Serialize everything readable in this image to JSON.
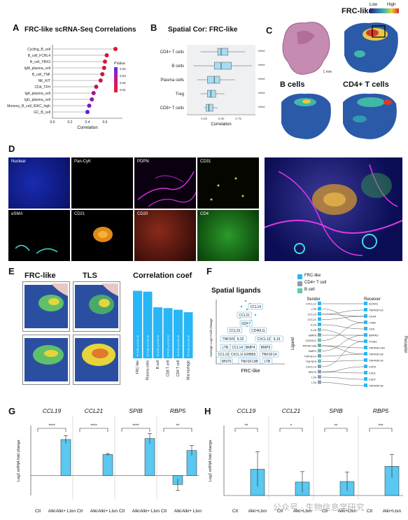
{
  "panel_labels": {
    "a": "A",
    "b": "B",
    "c": "C",
    "d": "D",
    "e": "E",
    "f": "F",
    "g": "G",
    "h": "H"
  },
  "panel_a": {
    "title": "FRC-like scRNA-Seq Correlations",
    "xlabel": "Correlation",
    "legend_title": "PValue",
    "legend_ticks": [
      "0.04",
      "0.03",
      "0.02",
      "0.01"
    ],
    "chart_data": {
      "type": "scatter",
      "categories": [
        "Cycling_B_cell",
        "B_cell_FCRL4",
        "B_cell_YBX3",
        "IgM_plasma_cell",
        "B_cell_TNF",
        "NK_KIT",
        "CD4_TFH",
        "IgA_plasma_cell",
        "IgG_plasma_cell",
        "Memory_B_cell_IGKC_high",
        "GC_B_cell"
      ],
      "values": [
        0.72,
        0.62,
        0.6,
        0.59,
        0.57,
        0.55,
        0.5,
        0.47,
        0.45,
        0.42,
        0.4
      ],
      "pvalues": [
        0.002,
        0.004,
        0.005,
        0.006,
        0.007,
        0.009,
        0.012,
        0.02,
        0.025,
        0.032,
        0.04
      ],
      "xticks": [
        "0.0",
        "0.2",
        "0.4",
        "0.6"
      ],
      "xlim": [
        0,
        0.8
      ]
    }
  },
  "panel_b": {
    "title": "Spatial Cor: FRC-like",
    "xlabel": "Correlation",
    "sig": "****",
    "chart_data": {
      "type": "box",
      "categories": [
        "CD4+ T cells",
        "B cells",
        "Plasma cells",
        "Treg",
        "CD8+ T cells"
      ],
      "q1": [
        0.45,
        0.4,
        0.3,
        0.3,
        0.28
      ],
      "median": [
        0.5,
        0.5,
        0.4,
        0.35,
        0.32
      ],
      "q3": [
        0.6,
        0.65,
        0.48,
        0.42,
        0.38
      ],
      "whisker_low": [
        0.2,
        0.1,
        0.15,
        0.2,
        0.25
      ],
      "whisker_high": [
        0.85,
        0.95,
        0.7,
        0.55,
        0.45
      ],
      "xticks": [
        "0.25",
        "0.50",
        "0.75"
      ],
      "xlim": [
        0,
        1
      ]
    }
  },
  "panel_c": {
    "legend_title": "FRC-like",
    "legend_low": "Low",
    "legend_high": "High",
    "scale_text": "1 mm",
    "titles": [
      "B cells",
      "CD4+ T cells"
    ]
  },
  "panel_d": {
    "labels": [
      "Nuclear",
      "Pan-CyK",
      "PDPN",
      "CD31",
      "αSMA",
      "CD21",
      "CD20",
      "CD4"
    ]
  },
  "panel_e": {
    "titles": [
      "FRC-like",
      "TLS"
    ],
    "chart_title": "Correlation coef",
    "chart_data": {
      "type": "bar",
      "categories": [
        "FRC-like",
        "Plasma cells",
        "B cell",
        "CD8 T cell",
        "CD4 T cell",
        "Macrophage"
      ],
      "values": [
        0.82,
        0.81,
        0.62,
        0.61,
        0.59,
        0.56
      ],
      "bar_labels": [
        "R=0.82, p<2.2e-16",
        "R=0.81, p<2.2e-16",
        "R=0.62, p<2.2e-16",
        "R=0.61, p<2.2e-16",
        "R=0.59, p<2.2e-16",
        "R=0.56, p<2.2e-16"
      ],
      "color": "#29b6f6"
    }
  },
  "panel_f": {
    "title": "Spatial ligands",
    "xlabel": "FRC-like",
    "ylabel": "Average Log2 Fold Change",
    "ligand_boxes": [
      "CCL14",
      "CCL21",
      "GDF7",
      "CCL19",
      "CD40LG",
      "TNFSF8",
      "IL32",
      "CXCL12",
      "IL16",
      "LTB",
      "CCL14",
      "BMP4",
      "BMP6",
      "CCL19",
      "CXCL14",
      "ERBB3",
      "TNFSF14",
      "WNT5",
      "TNFSF13B",
      "LTB"
    ],
    "legend": [
      "FRC-like",
      "CD4+ T cell",
      "B cell"
    ],
    "legend_colors": [
      "#29b6f6",
      "#8e9ab3",
      "#5fc9a6"
    ],
    "sender_label": "Sender",
    "receiver_label": "Receiver",
    "ligand_axis": "Ligand",
    "receptor_axis": "Receptor",
    "senders": [
      "CXCL12",
      "LTB",
      "CCL19",
      "CCL21",
      "IL16",
      "IL16",
      "BMP6",
      "CD40LG",
      "TNFSF13B",
      "BMP4",
      "TNFSF14",
      "TNFSF8",
      "CXCL14",
      "WNT5",
      "LTA",
      "LTA"
    ],
    "receivers": [
      "ACKR1",
      "TNFRSF1A",
      "CD44",
      "LTBR",
      "CD9",
      "BMPR2",
      "ITGB1",
      "TNFRSF13A",
      "TNFRSF1B",
      "TNFRSF1A",
      "LRP6",
      "FZD1",
      "FZD7",
      "TNFRSF1B"
    ]
  },
  "panel_g": {
    "ylabel": "Log2 mRNA fold change",
    "genes": [
      "CCL19",
      "CCL21",
      "SPIB",
      "RBP5"
    ],
    "sig": [
      "****",
      "****",
      "****",
      "**"
    ],
    "xcats": [
      "Ctl",
      "Alki",
      "Alki+ Ltxn"
    ],
    "chart_data": {
      "type": "bar",
      "series": [
        {
          "name": "CCL19",
          "values": [
            0,
            0,
            7.2
          ],
          "err": [
            0,
            0,
            0.8
          ]
        },
        {
          "name": "CCL21",
          "values": [
            0,
            0,
            4.2
          ],
          "err": [
            0,
            0,
            0.2
          ]
        },
        {
          "name": "SPIB",
          "values": [
            0,
            0,
            7.4
          ],
          "err": [
            0,
            0,
            1.0
          ]
        },
        {
          "name": "RBP5",
          "values": [
            0,
            -1.8,
            5.0
          ],
          "err": [
            0,
            1.2,
            1.0
          ]
        }
      ],
      "ylim": [
        -4,
        10
      ]
    }
  },
  "panel_h": {
    "ylabel": "Log2 mRNA fold change",
    "genes": [
      "CCL19",
      "CCL21",
      "SPIB",
      "RBP5"
    ],
    "sig": [
      "**",
      "*",
      "**",
      "***"
    ],
    "xcats": [
      "Ctl",
      "Alki+Ltxn"
    ],
    "chart_data": {
      "type": "bar",
      "series": [
        {
          "name": "CCL19",
          "values": [
            0,
            4.5
          ],
          "err": [
            0,
            3.0
          ]
        },
        {
          "name": "CCL21",
          "values": [
            0,
            2.3
          ],
          "err": [
            0,
            1.8
          ]
        },
        {
          "name": "SPIB",
          "values": [
            0,
            2.4
          ],
          "err": [
            0,
            1.6
          ]
        },
        {
          "name": "RBP5",
          "values": [
            0,
            5.0
          ],
          "err": [
            0,
            2.0
          ]
        }
      ],
      "ylim": [
        0,
        12
      ]
    }
  },
  "watermark": "公众号 · 生物信息学研究"
}
